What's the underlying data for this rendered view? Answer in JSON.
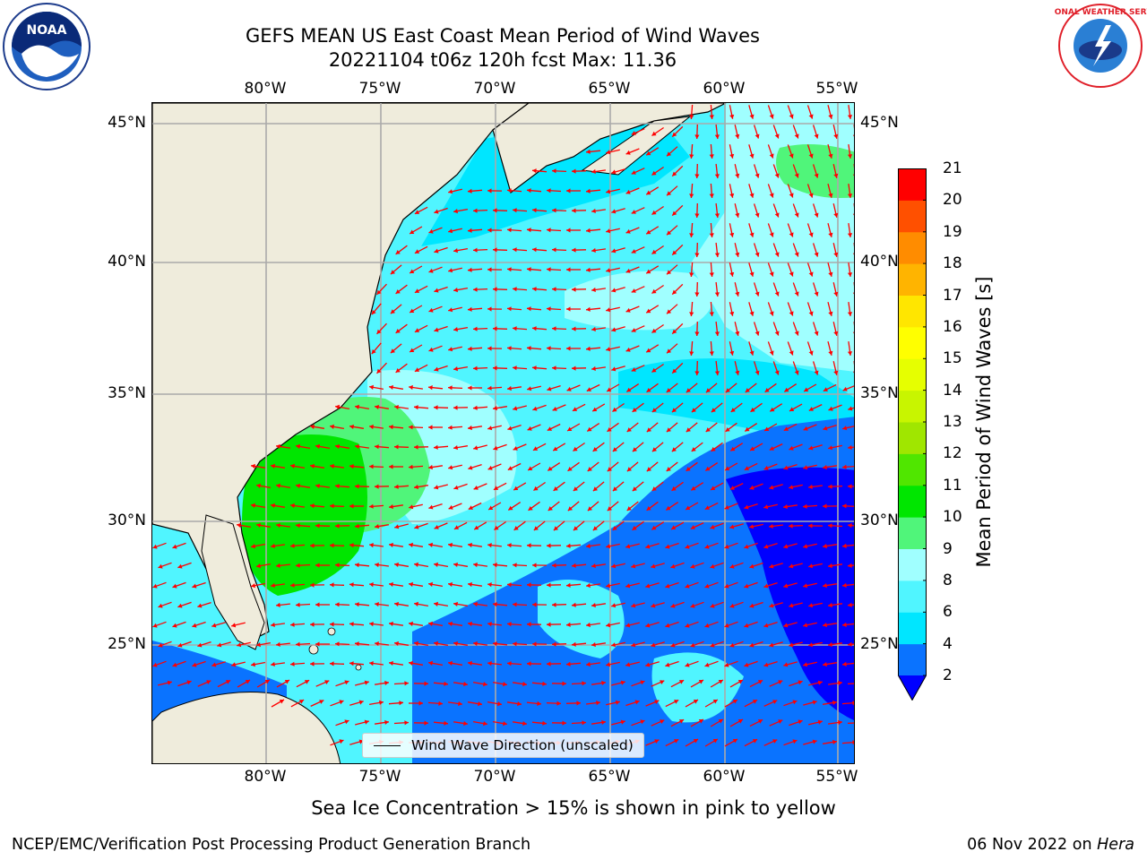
{
  "header": {
    "title_line1": "GEFS MEAN US East Coast Mean Period of Wind Waves",
    "title_line2": "20221104 t06z 120h fcst   Max: 11.36"
  },
  "logos": {
    "noaa_text": "NOAA",
    "nws_text": "NATIONAL WEATHER SERVICE"
  },
  "map": {
    "lon_labels": [
      "80°W",
      "75°W",
      "70°W",
      "65°W",
      "60°W",
      "55°W"
    ],
    "lat_labels": [
      "45°N",
      "40°N",
      "35°N",
      "30°N",
      "25°N"
    ],
    "legend_label": "Wind Wave Direction (unscaled)",
    "arrow_color": "#ff0000",
    "land_color": "#efecdc"
  },
  "colorbar": {
    "title": "Mean Period of Wind Waves [s]",
    "levels": [
      "2",
      "4",
      "6",
      "8",
      "9",
      "10",
      "11",
      "12",
      "13",
      "14",
      "15",
      "16",
      "17",
      "18",
      "19",
      "20",
      "21"
    ],
    "colors": [
      "#0a73ff",
      "#00e6ff",
      "#50f5ff",
      "#a0ffff",
      "#50f57a",
      "#00e600",
      "#50e600",
      "#a0e600",
      "#c8f500",
      "#e6ff00",
      "#ffff00",
      "#ffe600",
      "#ffb400",
      "#ff8c00",
      "#ff5000",
      "#ff0000"
    ],
    "under_color": "#0000ff"
  },
  "footer": {
    "sea_ice_note": "Sea Ice Concentration > 15% is shown in pink to yellow",
    "credit_left": "NCEP/EMC/Verification Post Processing Product Generation Branch",
    "credit_date": "06 Nov 2022 on",
    "credit_machine": "Hera"
  }
}
